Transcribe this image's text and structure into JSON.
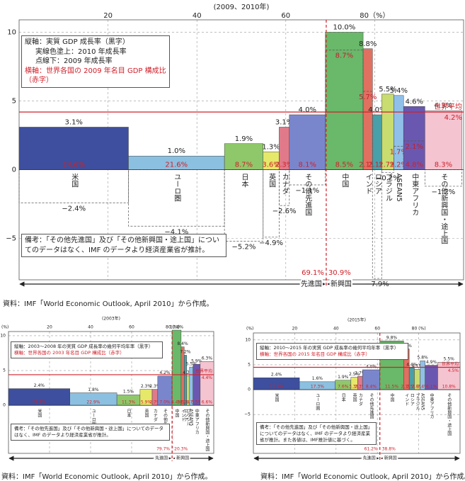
{
  "chart_data": [
    {
      "type": "marimekko",
      "title": "(2009、2010年)",
      "categories": [
        "米国",
        "ユーロ圏",
        "日本",
        "英国",
        "カナダ",
        "その他先進国",
        "中国",
        "インド",
        "ロシア",
        "ブラジル",
        "ASEAN5",
        "中東アフリカ",
        "その他新興国・途上国"
      ],
      "colors": [
        "#3d4f9e",
        "#8cc0e0",
        "#8fc86a",
        "#e6e86a",
        "#e07a8a",
        "#7a86cc",
        "#6ab86a",
        "#e07060",
        "#4aa0a8",
        "#c8dc70",
        "#90c0e8",
        "#6a58b0",
        "#f4c4d0"
      ],
      "growth": {
        "values": [
          3.1,
          1.0,
          1.9,
          1.3,
          3.1,
          4.0,
          10.0,
          8.8,
          4.0,
          5.5,
          5.4,
          4.6,
          4.3
        ],
        "value_labels": [
          "3.1%",
          "1.0%",
          "1.9%",
          "1.3%",
          "3.1%",
          "4.0%",
          "10.0%",
          "8.8%",
          "4.0%",
          "5.5%",
          "5.4%",
          "4.6%",
          "4.3%"
        ]
      },
      "growth_2009": {
        "values": [
          -2.4,
          -4.1,
          -5.2,
          -4.9,
          -2.6,
          -1.1,
          8.7,
          5.7,
          -7.9,
          -0.2,
          1.7,
          2.1,
          -1.2
        ],
        "value_labels": [
          "−2.4%",
          "−4.1%",
          "−5.2%",
          "−4.9%",
          "−2.6%",
          "−1.1%",
          "8.7%",
          "5.7%",
          "−7.9%",
          "−0.2%",
          "1.7%",
          "2.1%",
          "−1.2%"
        ]
      },
      "share": {
        "values": [
          24.6,
          21.6,
          8.7,
          3.6,
          2.3,
          8.1,
          8.5,
          2.1,
          2.1,
          2.7,
          2.2,
          4.8,
          8.3
        ],
        "value_labels": [
          "24.6%",
          "21.6%",
          "8.7%",
          "3.6%",
          "2.3%",
          "8.1%",
          "8.5%",
          "2.1%",
          "2.1%",
          "2.7%",
          "2.2%",
          "4.8%",
          "8.3%"
        ]
      },
      "world_average": {
        "name": "世界平均",
        "value": 4.2,
        "value_label": "4.2%"
      },
      "groups": [
        {
          "name": "先進国",
          "value": 69.1,
          "value_label": "69.1%"
        },
        {
          "name": "新興国",
          "value": 30.9,
          "value_label": "30.9%"
        }
      ],
      "xlim": [
        0,
        100
      ],
      "xticks": [
        20,
        40,
        60,
        {
          "value": 80,
          "label": "80（%）"
        }
      ],
      "ylim": [
        -8,
        10.9
      ],
      "yticks": [
        10,
        5,
        0,
        {
          "value": -5,
          "label": "−5"
        }
      ],
      "legend_lines": [
        "縦軸：実質 GDP 成長率（黒字）",
        "実線色塗上：2010 年成長率",
        "点線下：2009 年成長率",
        "横軸：世界各国の 2009 年名目 GDP 構成比（赤字）"
      ],
      "note": "備考：「その他先進国」及び「その他新興国・途上国」についてのデータはなく、IMF のデータより経済産業省が推計。",
      "source": "資料：IMF「World Economic Outlook, April 2010」から作成。"
    },
    {
      "type": "marimekko",
      "title": "(2003年)",
      "y_unit": "(%)",
      "categories": [
        "米国",
        "ユーロ圏",
        "日本",
        "英国",
        "カナダ",
        "その他先進国",
        "中国",
        "インド",
        "ロシア",
        "ブラジル",
        "ASEAN5",
        "中東アフリカ",
        "その他新興国・途上国"
      ],
      "colors": [
        "#3d4f9e",
        "#8cc0e0",
        "#8fc86a",
        "#e6e86a",
        "#e07a8a",
        "#7a86cc",
        "#6ab86a",
        "#e07060",
        "#4aa0a8",
        "#c8dc70",
        "#90c0e8",
        "#6a58b0",
        "#f4c4d0"
      ],
      "growth": {
        "values": [
          2.4,
          1.8,
          1.5,
          2.3,
          2.3,
          4.2,
          10.8,
          8.4,
          7.2,
          4.2,
          5.5,
          5.9,
          6.3
        ],
        "value_labels": [
          "2.4%",
          "1.8%",
          "1.5%",
          "2.3%",
          "2.3%",
          "4.2%",
          "10.8%",
          "8.4%",
          "7.2%",
          "4.2%",
          "5.5%",
          "5.9%",
          "6.3%"
        ]
      },
      "share": {
        "values": [
          29.9,
          22.9,
          11.3,
          5.9,
          2.7,
          7.0,
          4.4,
          1.5,
          1.2,
          1.4,
          1.7,
          3.5,
          6.6
        ],
        "value_labels": [
          "29.9%",
          "22.9%",
          "11.3%",
          "5.9%",
          "2.7%",
          "7.0%",
          "4.4%",
          "1.5%",
          "1.2%",
          "1.4%",
          "1.7%",
          "3.5%",
          "6.6%"
        ]
      },
      "world_average": {
        "name": "世界平均",
        "value": 4.4,
        "value_label": "4.4%"
      },
      "groups": [
        {
          "name": "先進国",
          "value": 79.7,
          "value_label": "79.7%"
        },
        {
          "name": "新興国",
          "value": 20.3,
          "value_label": "20.3%"
        }
      ],
      "xlim": [
        0,
        100
      ],
      "xticks": [
        20,
        40,
        60,
        {
          "value": 80,
          "label": "80 (%)"
        }
      ],
      "ylim": [
        -6.9,
        10.6
      ],
      "yticks": [
        10,
        5,
        0
      ],
      "legend_lines": [
        "縦軸：2003～2008 年の実質 GDP 成長率の幾何平均年率（黒字）",
        "横軸：世界各国の 2003 年名目 GDP 構成比（赤字）"
      ],
      "note": "備考：「その他先進国」及び「その他新興国・途上国」についてのデータはなく、IMF のデータより経済産業省が推計。",
      "source": "資料：IMF「World Economic Outlook, April 2010」から作成。"
    },
    {
      "type": "marimekko",
      "title": "(2015年)",
      "y_unit": "(%)",
      "categories": [
        "米国",
        "ユーロ圏",
        "日本",
        "英国",
        "カナダ",
        "その他先進国",
        "中国",
        "インド",
        "ロシア",
        "ブラジル",
        "ASEAN5",
        "中東アフリカ",
        "その他新興国・途上国"
      ],
      "colors": [
        "#3d4f9e",
        "#8cc0e0",
        "#8fc86a",
        "#e6e86a",
        "#e07a8a",
        "#7a86cc",
        "#6ab86a",
        "#e07060",
        "#4aa0a8",
        "#c8dc70",
        "#90c0e8",
        "#6a58b0",
        "#f4c4d0"
      ],
      "growth": {
        "values": [
          2.4,
          1.6,
          1.9,
          2.5,
          2.7,
          4.0,
          9.8,
          8.2,
          4.4,
          4.1,
          5.8,
          4.9,
          5.5
        ],
        "value_labels": [
          "2.4%",
          "1.6%",
          "1.9%",
          "2.5%",
          "2.7%",
          "4.0%",
          "9.8%",
          "8.2%",
          "4.4%",
          "4.1%",
          "5.8%",
          "4.9%",
          "5.5%"
        ]
      },
      "share": {
        "values": [
          22.3,
          17.3,
          7.6,
          3.3,
          2.3,
          8.4,
          11.5,
          2.7,
          2.5,
          2.8,
          2.4,
          6.1,
          10.8
        ],
        "value_labels": [
          "22.3%",
          "17.3%",
          "7.6%",
          "3.3%",
          "2.3%",
          "8.4%",
          "11.5%",
          "2.7%",
          "2.5%",
          "2.8%",
          "2.4%",
          "6.1%",
          "10.8%"
        ]
      },
      "world_average": {
        "name": "世界平均",
        "value": 4.5,
        "value_label": "4.5%"
      },
      "groups": [
        {
          "name": "先進国",
          "value": 61.2,
          "value_label": "61.2%"
        },
        {
          "name": "新興国",
          "value": 38.8,
          "value_label": "38.8%"
        }
      ],
      "xlim": [
        0,
        100
      ],
      "xticks": [
        20,
        40,
        60,
        {
          "value": 80,
          "label": "80 (%)"
        }
      ],
      "ylim": [
        -12.8,
        11.4
      ],
      "yticks": [
        10,
        5,
        0,
        {
          "value": -5,
          "label": "−5"
        }
      ],
      "legend_lines": [
        "縦軸：2010～2015 年の実質 GDP 成長率の幾何平均年率（黒字）",
        "横軸：世界各国の 2015 年名目 GDP 構成比（赤字）"
      ],
      "note": "備考：「その他先進国」及び「その他新興国・途上国」についてのデータはなく、IMF のデータより経済産業省が推計。また各値は、IMF推計値に基づく。",
      "source": "資料：IMF「World Economic Outlook, April 2010」から作成。"
    }
  ]
}
